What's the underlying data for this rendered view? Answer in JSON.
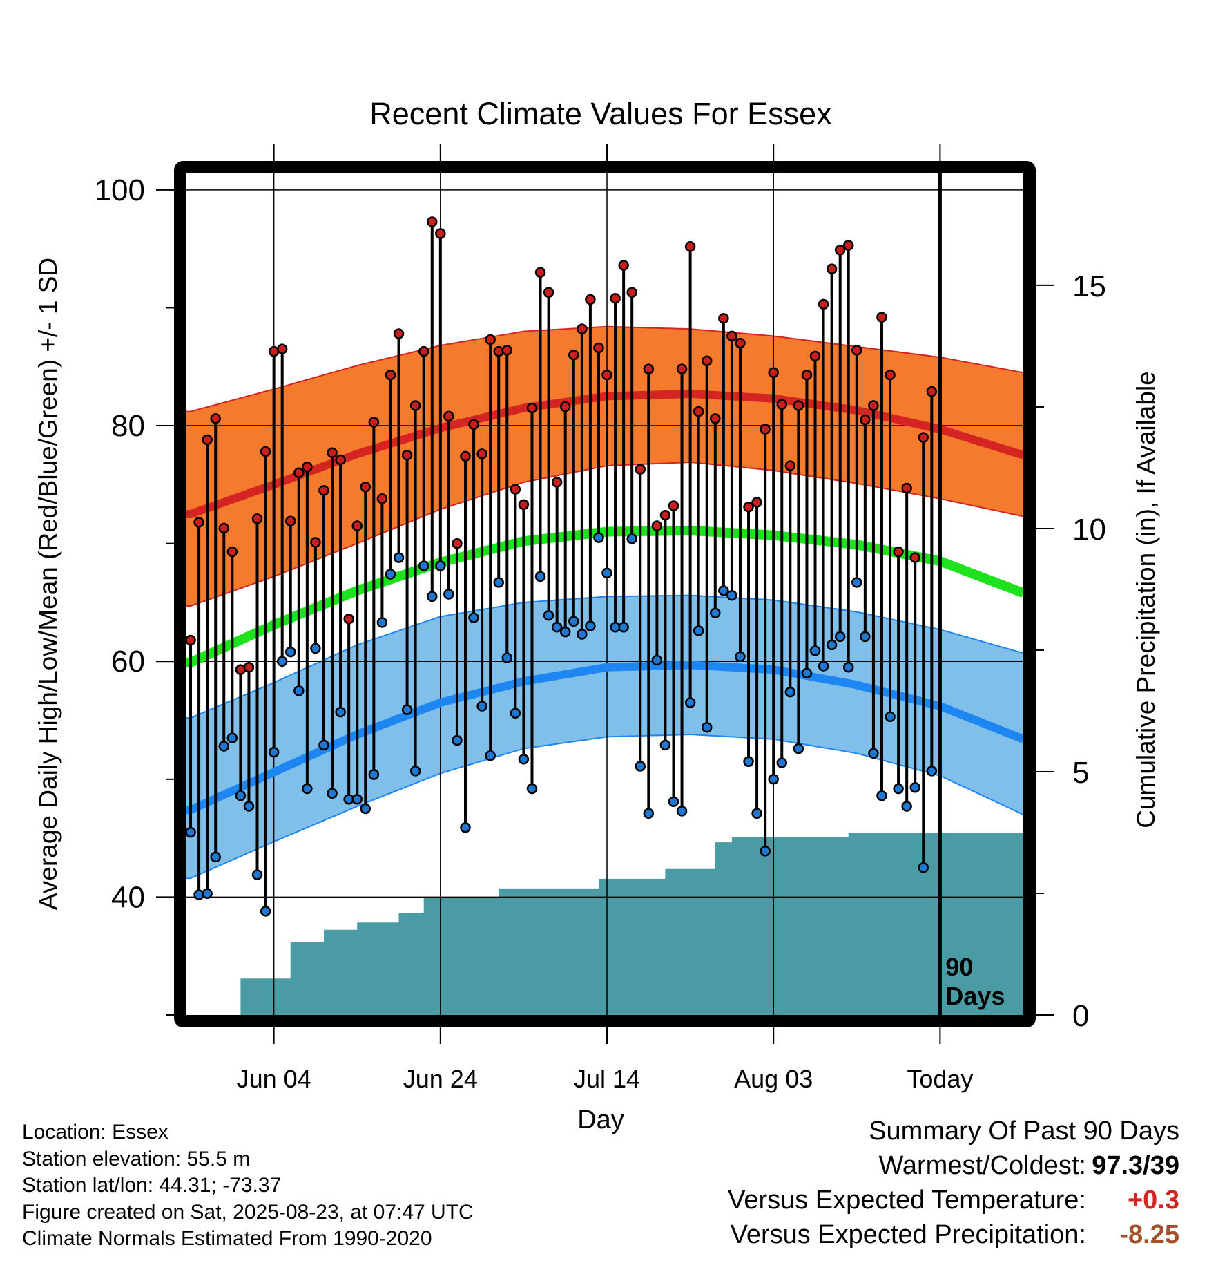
{
  "chart_data": {
    "type": "line",
    "title": "Recent Climate Values For Essex",
    "xlabel": "Day",
    "ylabel": "Average Daily High/Low/Mean (Red/Blue/Green) +/- 1 SD",
    "y2label": "Cumulative Precipitation (in), If Available",
    "x_ticks": [
      {
        "label": "Jun 04",
        "day": 11
      },
      {
        "label": "Jun 24",
        "day": 31
      },
      {
        "label": "Jul 14",
        "day": 51
      },
      {
        "label": "Aug 03",
        "day": 71
      },
      {
        "label": "Today",
        "day": 91
      }
    ],
    "ylim": [
      30,
      101.4
    ],
    "y_ticks": [
      40,
      60,
      80,
      100
    ],
    "y2lim": [
      0,
      17.3
    ],
    "y2_ticks": [
      0,
      5,
      10,
      15
    ],
    "marker_label": "90 Days",
    "days": [
      1,
      2,
      3,
      4,
      5,
      6,
      7,
      8,
      9,
      10,
      11,
      12,
      13,
      14,
      15,
      16,
      17,
      18,
      19,
      20,
      21,
      22,
      23,
      24,
      25,
      26,
      27,
      28,
      29,
      30,
      31,
      32,
      33,
      34,
      35,
      36,
      37,
      38,
      39,
      40,
      41,
      42,
      43,
      44,
      45,
      46,
      47,
      48,
      49,
      50,
      51,
      52,
      53,
      54,
      55,
      56,
      57,
      58,
      59,
      60,
      61,
      62,
      63,
      64,
      65,
      66,
      67,
      68,
      69,
      70,
      71,
      72,
      73,
      74,
      75,
      76,
      77,
      78,
      79,
      80,
      81,
      82,
      83,
      84,
      85,
      86,
      87,
      88,
      89,
      90
    ],
    "daily_high": [
      61.8,
      71.8,
      78.8,
      80.6,
      71.3,
      69.3,
      59.3,
      59.5,
      72.1,
      77.8,
      86.3,
      86.5,
      71.9,
      76.0,
      76.5,
      70.1,
      74.5,
      77.7,
      77.1,
      63.6,
      71.5,
      74.8,
      80.3,
      73.8,
      84.3,
      87.8,
      77.5,
      81.7,
      86.3,
      97.3,
      96.3,
      80.8,
      70.0,
      77.4,
      80.1,
      77.6,
      87.3,
      86.3,
      86.4,
      74.6,
      73.3,
      81.5,
      93.0,
      91.3,
      75.2,
      81.6,
      86.0,
      88.2,
      90.7,
      86.6,
      84.3,
      90.8,
      93.6,
      91.3,
      76.3,
      84.8,
      71.5,
      72.4,
      73.2,
      84.8,
      95.2,
      81.2,
      85.5,
      80.6,
      89.1,
      87.6,
      87.0,
      73.1,
      73.5,
      79.7,
      84.5,
      81.8,
      76.6,
      81.7,
      84.3,
      85.9,
      90.3,
      93.3,
      94.9,
      95.3,
      86.4,
      80.5,
      81.7,
      89.2,
      84.3,
      69.3,
      74.7,
      68.8,
      79.0,
      82.9
    ],
    "daily_low": [
      45.5,
      40.2,
      40.3,
      43.4,
      52.8,
      53.5,
      48.6,
      47.7,
      41.9,
      38.8,
      52.3,
      60.0,
      60.8,
      57.5,
      49.2,
      61.1,
      52.9,
      48.8,
      55.7,
      48.3,
      48.3,
      47.5,
      50.4,
      63.3,
      67.4,
      68.8,
      55.9,
      50.7,
      68.1,
      65.5,
      68.1,
      65.7,
      53.3,
      45.9,
      63.7,
      56.2,
      52.0,
      66.7,
      60.3,
      55.6,
      51.7,
      49.2,
      67.2,
      63.9,
      62.9,
      62.5,
      63.4,
      62.3,
      63.0,
      70.5,
      67.5,
      62.9,
      62.9,
      70.4,
      51.1,
      47.1,
      60.1,
      52.9,
      48.1,
      47.3,
      56.5,
      62.6,
      54.4,
      64.1,
      66.0,
      65.6,
      60.4,
      51.5,
      47.1,
      43.9,
      50.0,
      51.4,
      57.4,
      52.6,
      59.0,
      60.9,
      59.6,
      61.4,
      62.1,
      59.5,
      66.7,
      62.1,
      52.2,
      48.6,
      55.3,
      49.2,
      47.7,
      49.3,
      42.5,
      50.7
    ],
    "normals": {
      "days": [
        1,
        11,
        21,
        31,
        41,
        51,
        61,
        71,
        81,
        91,
        101
      ],
      "mean_high": [
        72.5,
        75.0,
        77.6,
        79.8,
        81.5,
        82.5,
        82.7,
        82.3,
        81.3,
        79.7,
        77.5
      ],
      "high_upper": [
        81.2,
        83.1,
        85.1,
        86.8,
        88.0,
        88.4,
        88.2,
        87.6,
        86.7,
        85.8,
        84.5
      ],
      "high_lower": [
        64.7,
        67.2,
        70.0,
        72.9,
        75.2,
        76.6,
        76.9,
        76.2,
        75.1,
        73.8,
        72.3
      ],
      "mean_avg": [
        59.9,
        63.1,
        66.0,
        68.4,
        70.2,
        71.0,
        71.1,
        70.7,
        69.9,
        68.5,
        65.8
      ],
      "mean_low": [
        47.4,
        50.6,
        53.8,
        56.5,
        58.3,
        59.5,
        59.7,
        59.3,
        58.0,
        56.2,
        53.4
      ],
      "low_upper": [
        55.2,
        58.2,
        61.4,
        63.8,
        65.0,
        65.5,
        65.6,
        65.2,
        64.2,
        62.7,
        60.7
      ],
      "low_lower": [
        41.6,
        44.7,
        47.7,
        50.5,
        52.6,
        53.6,
        53.8,
        53.4,
        52.2,
        50.3,
        47.0
      ]
    },
    "cumulative_precip": {
      "days": [
        1,
        7,
        7,
        13,
        13,
        17,
        17,
        21,
        21,
        26,
        26,
        29,
        29,
        38,
        38,
        50,
        50,
        58,
        58,
        64,
        64,
        66,
        66,
        80,
        80,
        101
      ],
      "values": [
        0,
        0,
        0.75,
        0.75,
        1.5,
        1.5,
        1.75,
        1.75,
        1.9,
        1.9,
        2.1,
        2.1,
        2.4,
        2.4,
        2.6,
        2.6,
        2.8,
        2.8,
        3.0,
        3.0,
        3.55,
        3.55,
        3.65,
        3.65,
        3.75,
        3.75
      ]
    },
    "colors": {
      "high_band": "#F47B2E",
      "high_line": "#D42523",
      "low_band": "#7FBFE9",
      "low_line": "#1E86F2",
      "mean_line": "#1EE21E",
      "precip": "#4A9BA3",
      "high_dot": "#C81E1E",
      "low_dot": "#1E78D2"
    }
  },
  "meta": {
    "location": "Location: Essex",
    "elevation": "Station elevation: 55.5 m",
    "latlon": "Station lat/lon: 44.31; -73.37",
    "created": "Figure created on Sat, 2025-08-23, at 07:47 UTC",
    "normals": "Climate Normals Estimated From 1990-2020"
  },
  "summary": {
    "title": "Summary Of Past 90 Days",
    "warmest_label": "Warmest/Coldest:",
    "warmest_value": "97.3/39",
    "temp_label": "Versus Expected Temperature:",
    "temp_value": "+0.3",
    "temp_color": "#D42523",
    "precip_label": "Versus Expected Precipitation:",
    "precip_value": "-8.25",
    "precip_color": "#A0522D"
  }
}
